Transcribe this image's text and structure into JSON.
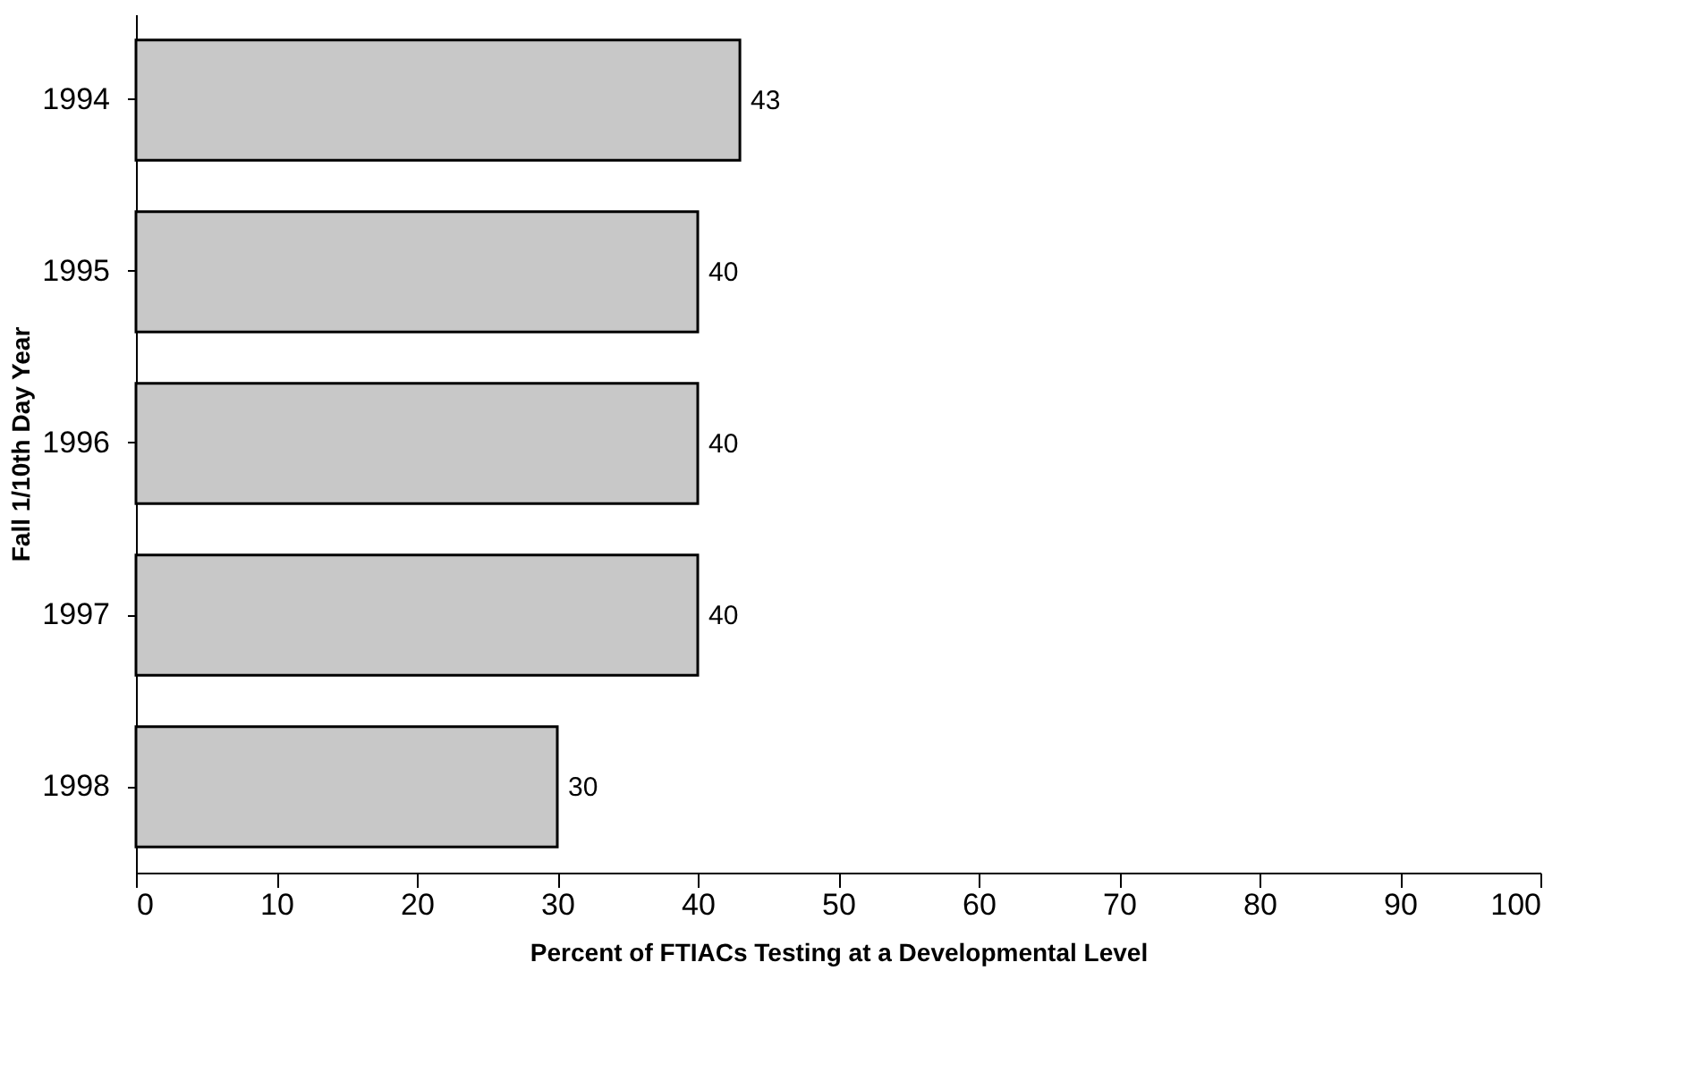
{
  "chart_data": {
    "type": "bar",
    "orientation": "horizontal",
    "categories": [
      "1994",
      "1995",
      "1996",
      "1997",
      "1998"
    ],
    "values": [
      43,
      40,
      40,
      40,
      30
    ],
    "color": "#c8c8c8",
    "xlabel": "Percent of FTIACs Testing at a Developmental Level",
    "ylabel": "Fall 1/10th Day Year",
    "xlim": [
      0,
      100
    ],
    "xticks": [
      0,
      10,
      20,
      30,
      40,
      50,
      60,
      70,
      80,
      90,
      100
    ],
    "data_labels": true,
    "grid": false
  }
}
